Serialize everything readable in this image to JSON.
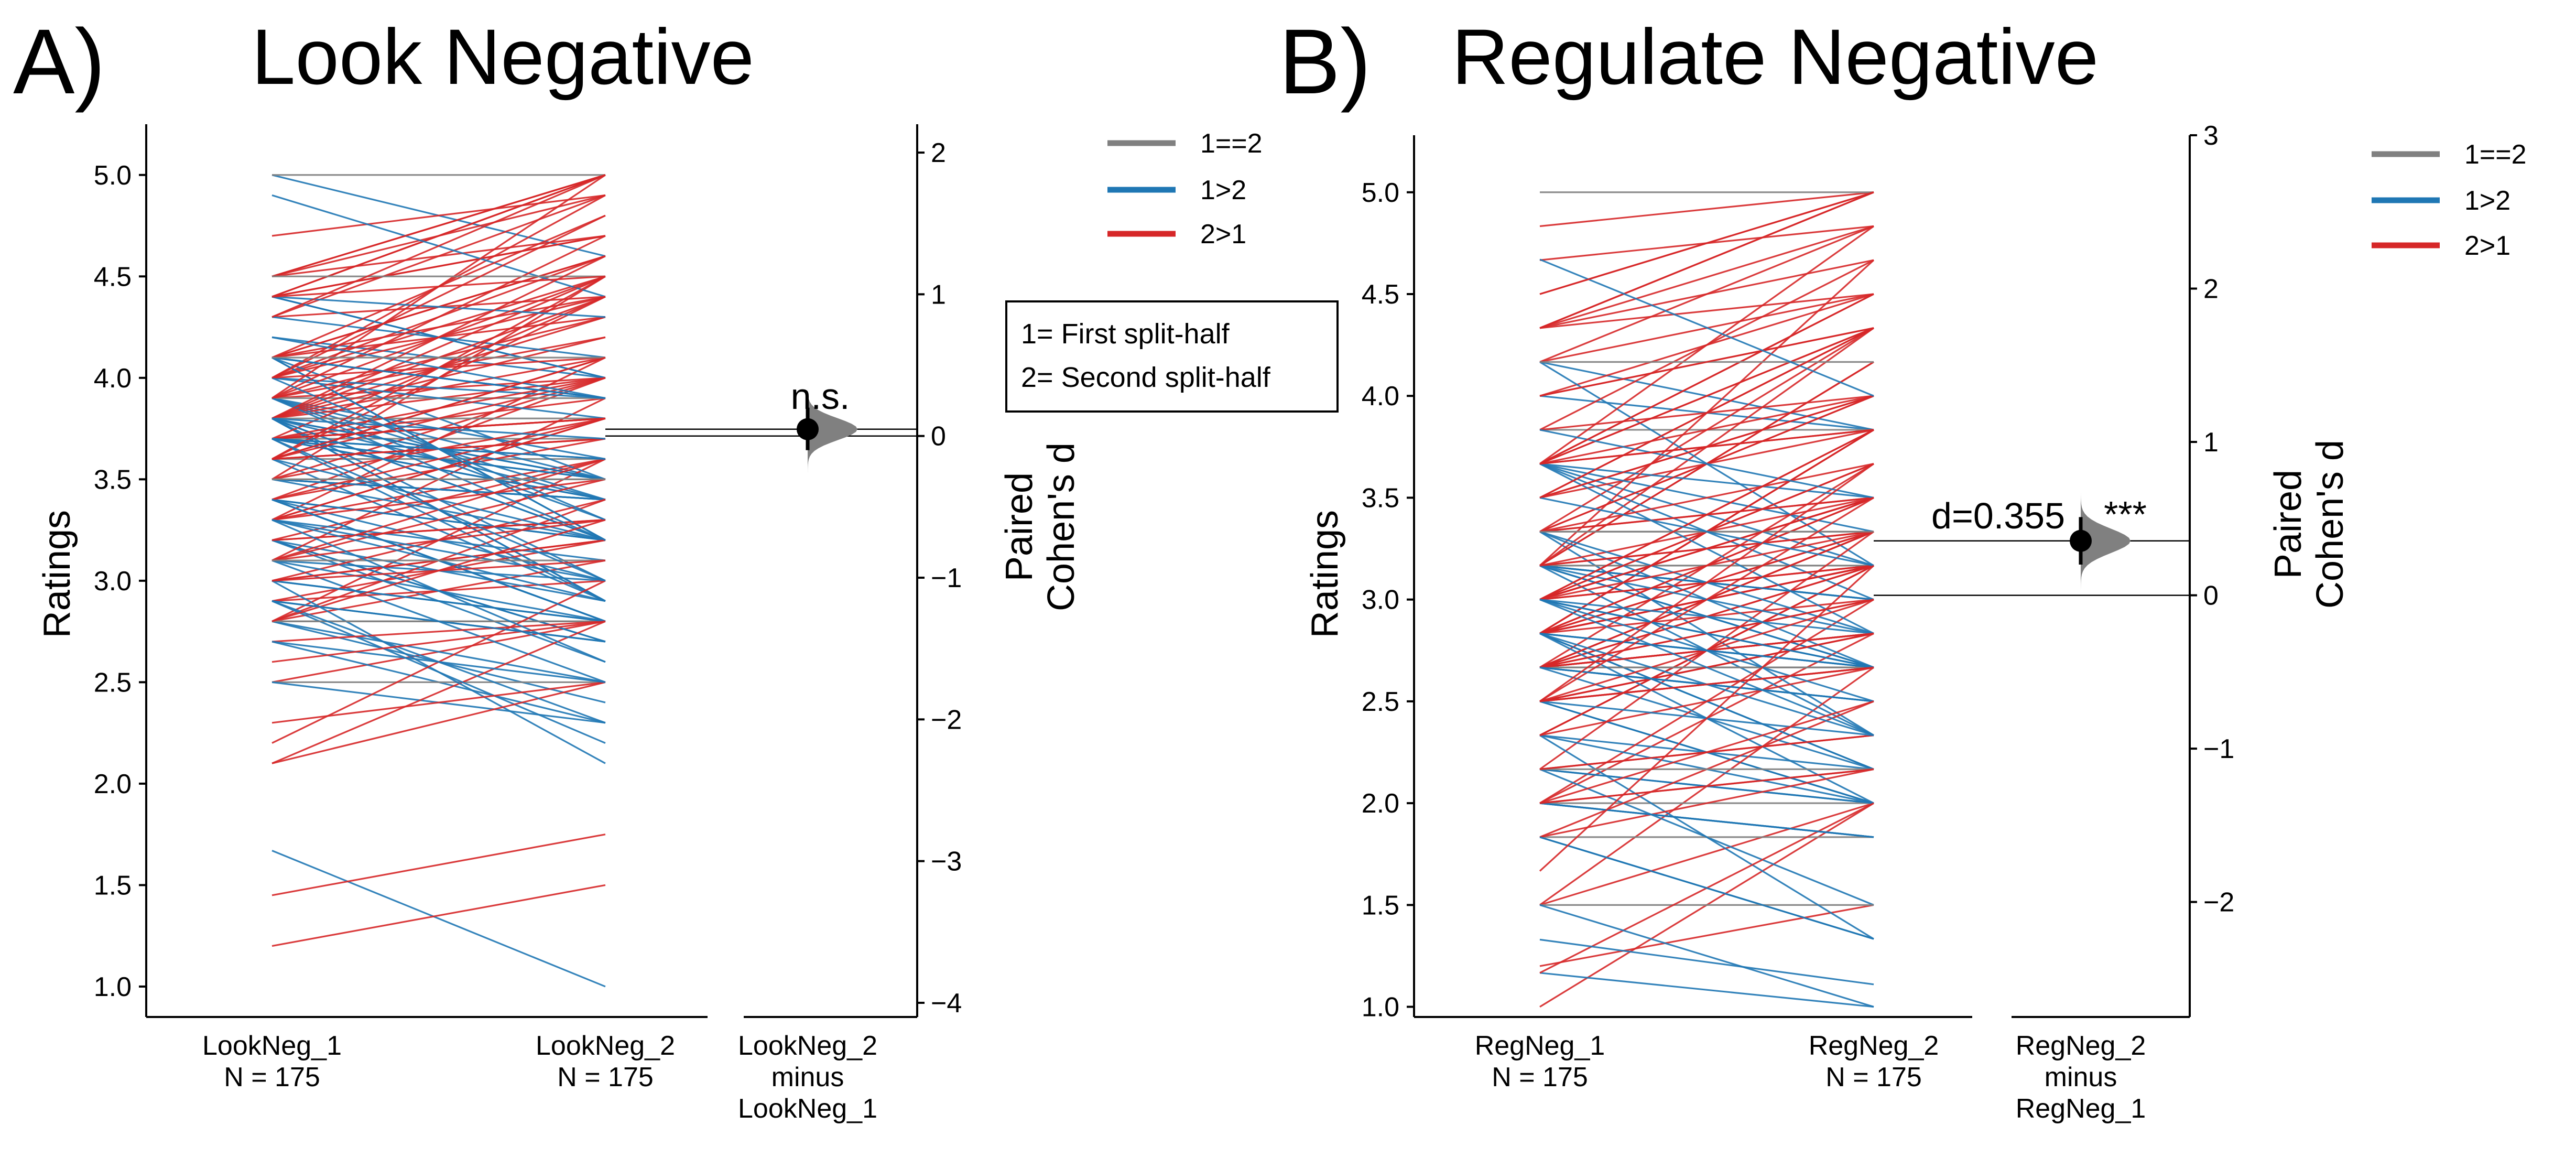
{
  "colors": {
    "equal": "#808080",
    "decrease": "#1f77b4",
    "increase": "#d62728"
  },
  "legend": [
    {
      "label": "1==2",
      "color": "#808080"
    },
    {
      "label": "1>2",
      "color": "#1f77b4"
    },
    {
      "label": "2>1",
      "color": "#d62728"
    }
  ],
  "note": {
    "line1": "1= First split-half",
    "line2": "2= Second split-half"
  },
  "chart_data": [
    {
      "type": "line",
      "panel_letter": "A)",
      "title": "Look Negative",
      "ylabel": "Ratings",
      "ylim": [
        0.85,
        5.25
      ],
      "yticks": [
        "1.0",
        "1.5",
        "2.0",
        "2.5",
        "3.0",
        "3.5",
        "4.0",
        "4.5",
        "5.0"
      ],
      "categories": [
        "LookNeg_1",
        "LookNeg_2"
      ],
      "n_labels": [
        "N = 175",
        "N = 175"
      ],
      "series": [],
      "mean_1": 3.62,
      "mean_2": 3.66,
      "effect": {
        "ylabel": [
          "Paired",
          "Cohen's d"
        ],
        "ylim": [
          -4.1,
          2.2
        ],
        "yticks": [
          "−4",
          "−3",
          "−2",
          "−1",
          "0",
          "1",
          "2"
        ],
        "category": [
          "LookNeg_2",
          "minus",
          "LookNeg_1"
        ],
        "d": 0.048,
        "ci": [
          -0.1,
          0.2
        ],
        "label": "n.s.",
        "d_label": ""
      }
    },
    {
      "type": "line",
      "panel_letter": "B)",
      "title": "Regulate Negative",
      "ylabel": "Ratings",
      "ylim": [
        0.95,
        5.28
      ],
      "yticks": [
        "1.0",
        "1.5",
        "2.0",
        "2.5",
        "3.0",
        "3.5",
        "4.0",
        "4.5",
        "5.0"
      ],
      "categories": [
        "RegNeg_1",
        "RegNeg_2"
      ],
      "n_labels": [
        "N = 175",
        "N = 175"
      ],
      "series": [],
      "mean_1": 2.98,
      "mean_2": 3.24,
      "effect": {
        "ylabel": [
          "Paired",
          "Cohen's d"
        ],
        "ylim": [
          -2.75,
          3.0
        ],
        "yticks": [
          "−2",
          "−1",
          "0",
          "1",
          "2",
          "3"
        ],
        "category": [
          "RegNeg_2",
          "minus",
          "RegNeg_1"
        ],
        "d": 0.355,
        "ci": [
          0.2,
          0.51
        ],
        "label": "***",
        "d_label": "d=0.355"
      }
    }
  ]
}
